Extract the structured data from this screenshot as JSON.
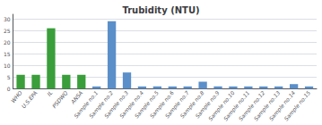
{
  "chart_data": {
    "type": "bar",
    "title": "Trubidity (NTU)",
    "categories": [
      "WHO",
      "U.S.EPA",
      "IL",
      "PSDWQ",
      "ANSA",
      "Sample no.1",
      "Sample no.2",
      "Sample no.3",
      "Sample no.4",
      "Sample no.5",
      "Sample no.6",
      "Sample no.7",
      "Sample no.8",
      "Sample no.9",
      "Sample no.10",
      "Sample no.11",
      "Sample no.12",
      "Sample no.13",
      "Sample no.14",
      "Sample no.15"
    ],
    "values": [
      6,
      6,
      26,
      6,
      6,
      1,
      29,
      7,
      1,
      1,
      1,
      1,
      3,
      1,
      1,
      1,
      1,
      1,
      2,
      1
    ],
    "colors": [
      "#3a9e3a",
      "#3a9e3a",
      "#3a9e3a",
      "#3a9e3a",
      "#3a9e3a",
      "#5b8fc9",
      "#5b8fc9",
      "#5b8fc9",
      "#5b8fc9",
      "#5b8fc9",
      "#5b8fc9",
      "#5b8fc9",
      "#5b8fc9",
      "#5b8fc9",
      "#5b8fc9",
      "#5b8fc9",
      "#5b8fc9",
      "#5b8fc9",
      "#5b8fc9",
      "#5b8fc9"
    ],
    "ylim": [
      0,
      32
    ],
    "yticks": [
      0,
      5,
      10,
      15,
      20,
      25,
      30
    ],
    "grid": true
  }
}
